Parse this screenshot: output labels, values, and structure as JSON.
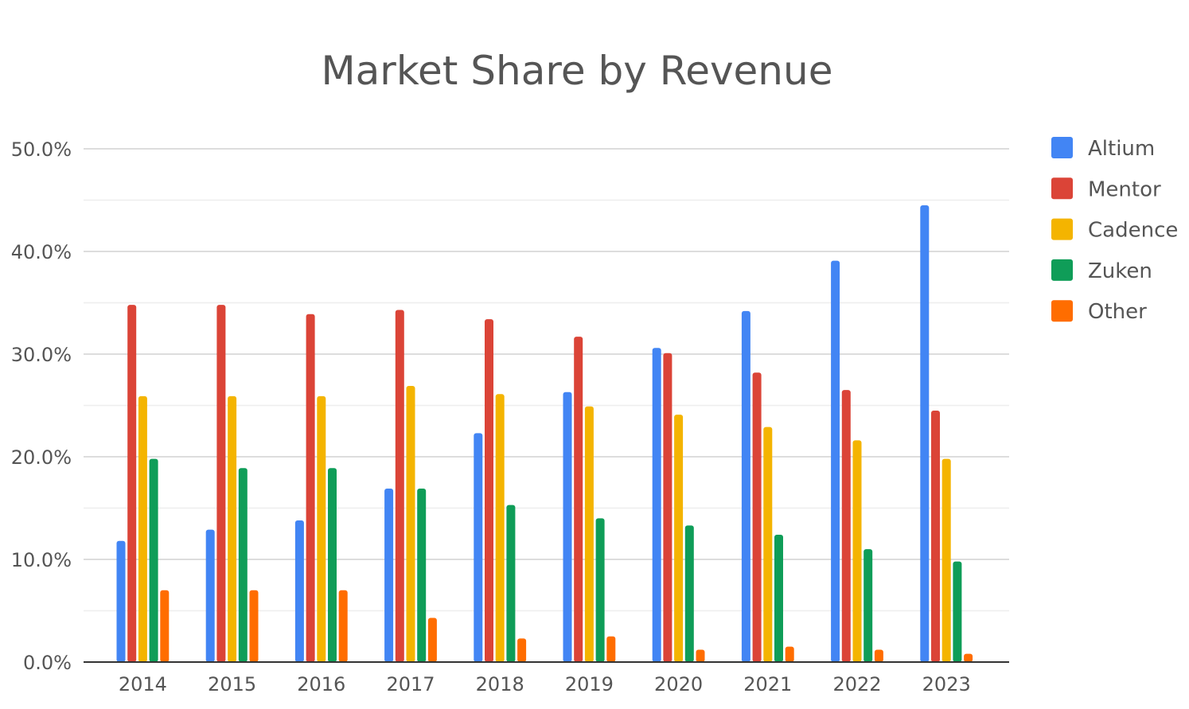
{
  "chart_data": {
    "type": "bar",
    "title": "Market Share by Revenue",
    "xlabel": "",
    "ylabel": "",
    "categories": [
      "2014",
      "2015",
      "2016",
      "2017",
      "2018",
      "2019",
      "2020",
      "2021",
      "2022",
      "2023"
    ],
    "series": [
      {
        "name": "Altium",
        "color": "#4285f4",
        "values": [
          11.8,
          12.9,
          13.8,
          16.9,
          22.3,
          26.3,
          30.6,
          34.2,
          39.1,
          44.5
        ]
      },
      {
        "name": "Mentor",
        "color": "#db4437",
        "values": [
          34.8,
          34.8,
          33.9,
          34.3,
          33.4,
          31.7,
          30.1,
          28.2,
          26.5,
          24.5
        ]
      },
      {
        "name": "Cadence",
        "color": "#f4b400",
        "values": [
          25.9,
          25.9,
          25.9,
          26.9,
          26.1,
          24.9,
          24.1,
          22.9,
          21.6,
          19.8
        ]
      },
      {
        "name": "Zuken",
        "color": "#0f9d58",
        "values": [
          19.8,
          18.9,
          18.9,
          16.9,
          15.3,
          14.0,
          13.3,
          12.4,
          11.0,
          9.8
        ]
      },
      {
        "name": "Other",
        "color": "#ff6d00",
        "values": [
          7.0,
          7.0,
          7.0,
          4.3,
          2.3,
          2.5,
          1.2,
          1.5,
          1.2,
          0.8
        ]
      }
    ],
    "y_ticks": [
      "0.0%",
      "10.0%",
      "20.0%",
      "30.0%",
      "40.0%",
      "50.0%"
    ],
    "ylim": [
      0,
      50
    ],
    "y_major_step": 10,
    "y_minor_step": 5,
    "grid": true,
    "legend_position": "right"
  }
}
